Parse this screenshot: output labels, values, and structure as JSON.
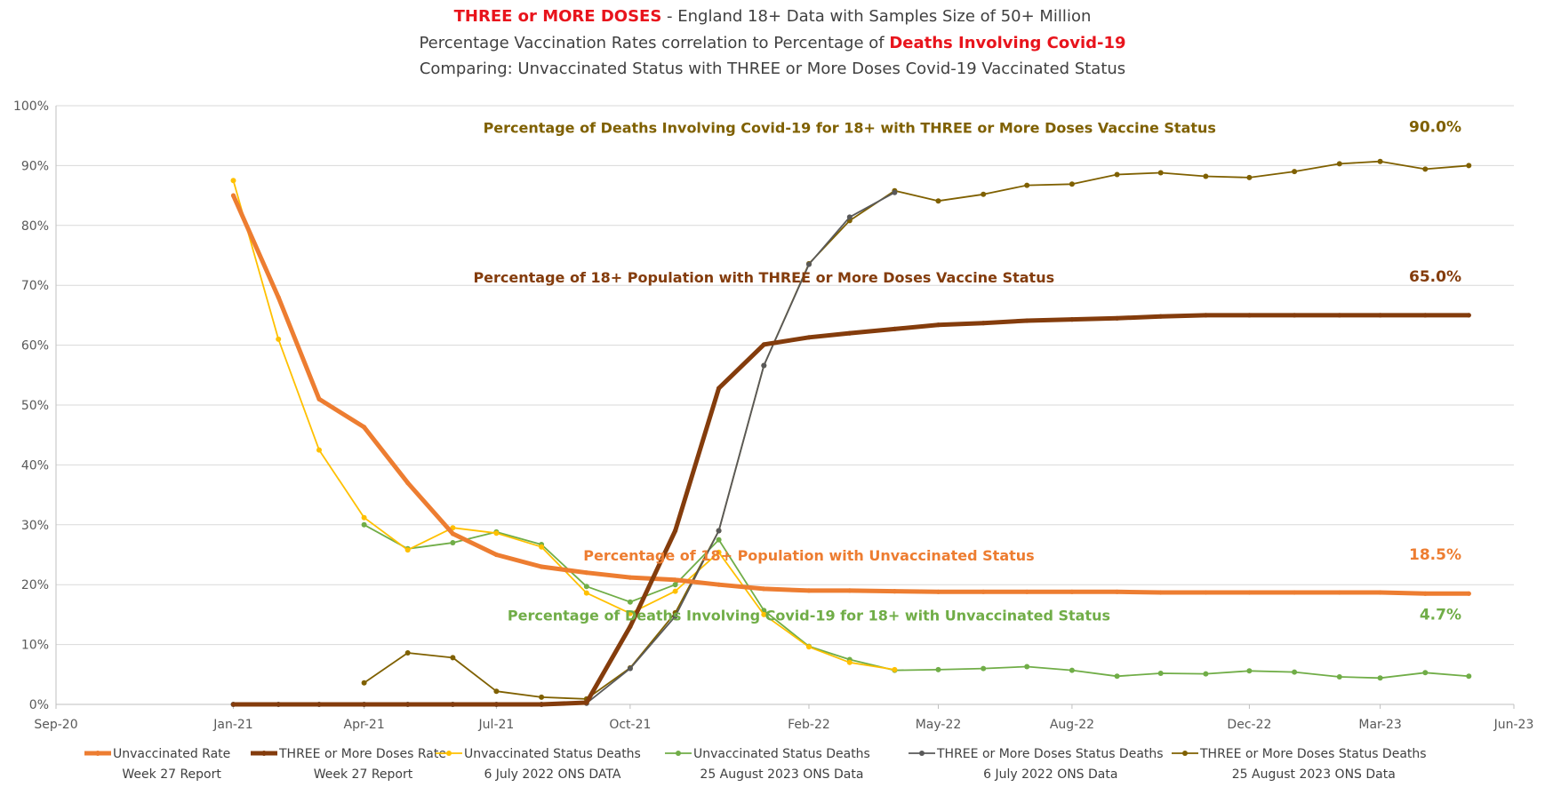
{
  "chart_data": {
    "type": "line",
    "title": {
      "line1": {
        "red": "THREE or MORE DOSES",
        "rest": " - England 18+ Data with Samples Size of 50+ Million"
      },
      "line2": {
        "pre": "Percentage Vaccination Rates correlation to Percentage of ",
        "red": "Deaths Involving Covid-19"
      },
      "line3": "Comparing: Unvaccinated Status with THREE or More Doses Covid-19 Vaccinated Status"
    },
    "y_axis": {
      "min": 0,
      "max": 100,
      "step": 10,
      "format": "percent",
      "ticks": [
        "0%",
        "10%",
        "20%",
        "30%",
        "40%",
        "50%",
        "60%",
        "70%",
        "80%",
        "90%",
        "100%"
      ]
    },
    "x_axis": {
      "min": "2020-09-01",
      "max": "2023-06-01",
      "ticks": [
        {
          "date": "2020-09-01",
          "label": "Sep-20"
        },
        {
          "date": "2021-01-01",
          "label": "Jan-21"
        },
        {
          "date": "2021-04-01",
          "label": "Apr-21"
        },
        {
          "date": "2021-07-01",
          "label": "Jul-21"
        },
        {
          "date": "2021-10-01",
          "label": "Oct-21"
        },
        {
          "date": "2022-02-01",
          "label": "Feb-22"
        },
        {
          "date": "2022-05-01",
          "label": "May-22"
        },
        {
          "date": "2022-08-01",
          "label": "Aug-22"
        },
        {
          "date": "2022-12-01",
          "label": "Dec-22"
        },
        {
          "date": "2023-03-01",
          "label": "Mar-23"
        },
        {
          "date": "2023-06-01",
          "label": "Jun-23"
        }
      ]
    },
    "grid": "horizontal",
    "legend_position": "bottom",
    "series": [
      {
        "name": "Unvaccinated Rate",
        "name2": "Week 27 Report",
        "color": "#ed7d31",
        "style": "thick",
        "points": [
          [
            "2021-01-01",
            85.0
          ],
          [
            "2021-02-01",
            68.0
          ],
          [
            "2021-03-01",
            51.0
          ],
          [
            "2021-04-01",
            46.3
          ],
          [
            "2021-05-01",
            37.0
          ],
          [
            "2021-06-01",
            28.5
          ],
          [
            "2021-07-01",
            25.0
          ],
          [
            "2021-08-01",
            23.0
          ],
          [
            "2021-09-01",
            22.0
          ],
          [
            "2021-10-01",
            21.2
          ],
          [
            "2021-11-01",
            20.8
          ],
          [
            "2021-12-01",
            20.0
          ],
          [
            "2022-01-01",
            19.3
          ],
          [
            "2022-02-01",
            19.0
          ],
          [
            "2022-03-01",
            19.0
          ],
          [
            "2022-04-01",
            18.9
          ],
          [
            "2022-05-01",
            18.8
          ],
          [
            "2022-06-01",
            18.8
          ],
          [
            "2022-07-01",
            18.8
          ],
          [
            "2022-08-01",
            18.8
          ],
          [
            "2022-09-01",
            18.8
          ],
          [
            "2022-10-01",
            18.7
          ],
          [
            "2022-11-01",
            18.7
          ],
          [
            "2022-12-01",
            18.7
          ],
          [
            "2023-01-01",
            18.7
          ],
          [
            "2023-02-01",
            18.7
          ],
          [
            "2023-03-01",
            18.7
          ],
          [
            "2023-04-01",
            18.5
          ],
          [
            "2023-05-01",
            18.5
          ]
        ]
      },
      {
        "name": "THREE or More Doses Rate",
        "name2": "Week 27 Report",
        "color": "#843c0c",
        "style": "thick",
        "points": [
          [
            "2021-01-01",
            0
          ],
          [
            "2021-02-01",
            0
          ],
          [
            "2021-03-01",
            0
          ],
          [
            "2021-04-01",
            0
          ],
          [
            "2021-05-01",
            0
          ],
          [
            "2021-06-01",
            0
          ],
          [
            "2021-07-01",
            0
          ],
          [
            "2021-08-01",
            0
          ],
          [
            "2021-09-01",
            0.3
          ],
          [
            "2021-10-01",
            13.0
          ],
          [
            "2021-11-01",
            29.0
          ],
          [
            "2021-12-01",
            52.8
          ],
          [
            "2022-01-01",
            60.1
          ],
          [
            "2022-02-01",
            61.3
          ],
          [
            "2022-03-01",
            62.0
          ],
          [
            "2022-04-01",
            62.7
          ],
          [
            "2022-05-01",
            63.4
          ],
          [
            "2022-06-01",
            63.7
          ],
          [
            "2022-07-01",
            64.1
          ],
          [
            "2022-08-01",
            64.3
          ],
          [
            "2022-09-01",
            64.5
          ],
          [
            "2022-10-01",
            64.8
          ],
          [
            "2022-11-01",
            65.0
          ],
          [
            "2022-12-01",
            65.0
          ],
          [
            "2023-01-01",
            65.0
          ],
          [
            "2023-02-01",
            65.0
          ],
          [
            "2023-03-01",
            65.0
          ],
          [
            "2023-04-01",
            65.0
          ],
          [
            "2023-05-01",
            65.0
          ]
        ]
      },
      {
        "name": "Unvaccinated Status Deaths",
        "name2": "6 July 2022 ONS DATA",
        "color": "#ffc000",
        "style": "thin",
        "points": [
          [
            "2021-01-01",
            87.5
          ],
          [
            "2021-02-01",
            61.0
          ],
          [
            "2021-03-01",
            42.5
          ],
          [
            "2021-04-01",
            31.2
          ],
          [
            "2021-05-01",
            25.8
          ],
          [
            "2021-06-01",
            29.5
          ],
          [
            "2021-07-01",
            28.6
          ],
          [
            "2021-08-01",
            26.3
          ],
          [
            "2021-09-01",
            18.6
          ],
          [
            "2021-10-01",
            15.2
          ],
          [
            "2021-11-01",
            18.9
          ],
          [
            "2021-12-01",
            25.4
          ],
          [
            "2022-01-01",
            15.0
          ],
          [
            "2022-02-01",
            9.6
          ],
          [
            "2022-03-01",
            7.0
          ],
          [
            "2022-04-01",
            5.8
          ]
        ]
      },
      {
        "name": "Unvaccinated Status Deaths",
        "name2": "25 August 2023 ONS Data",
        "color": "#70ad47",
        "style": "thin",
        "points": [
          [
            "2021-04-01",
            30.0
          ],
          [
            "2021-05-01",
            26.0
          ],
          [
            "2021-06-01",
            27.0
          ],
          [
            "2021-07-01",
            28.8
          ],
          [
            "2021-08-01",
            26.7
          ],
          [
            "2021-09-01",
            19.7
          ],
          [
            "2021-10-01",
            17.1
          ],
          [
            "2021-11-01",
            20.0
          ],
          [
            "2021-12-01",
            27.5
          ],
          [
            "2022-01-01",
            15.7
          ],
          [
            "2022-02-01",
            9.7
          ],
          [
            "2022-03-01",
            7.5
          ],
          [
            "2022-04-01",
            5.7
          ],
          [
            "2022-05-01",
            5.8
          ],
          [
            "2022-06-01",
            6.0
          ],
          [
            "2022-07-01",
            6.3
          ],
          [
            "2022-08-01",
            5.7
          ],
          [
            "2022-09-01",
            4.7
          ],
          [
            "2022-10-01",
            5.2
          ],
          [
            "2022-11-01",
            5.1
          ],
          [
            "2022-12-01",
            5.6
          ],
          [
            "2023-01-01",
            5.4
          ],
          [
            "2023-02-01",
            4.6
          ],
          [
            "2023-03-01",
            4.4
          ],
          [
            "2023-04-01",
            5.3
          ],
          [
            "2023-05-01",
            4.7
          ]
        ]
      },
      {
        "name": "THREE or More Doses Status Deaths",
        "name2": "6 July 2022 ONS Data",
        "color": "#595959",
        "style": "thin",
        "points": [
          [
            "2021-01-01",
            0
          ],
          [
            "2021-02-01",
            0
          ],
          [
            "2021-03-01",
            0
          ],
          [
            "2021-04-01",
            0
          ],
          [
            "2021-05-01",
            0
          ],
          [
            "2021-06-01",
            0
          ],
          [
            "2021-07-01",
            0
          ],
          [
            "2021-08-01",
            0
          ],
          [
            "2021-09-01",
            0.2
          ],
          [
            "2021-10-01",
            6.0
          ],
          [
            "2021-11-01",
            14.7
          ],
          [
            "2021-12-01",
            29.0
          ],
          [
            "2022-01-01",
            56.6
          ],
          [
            "2022-02-01",
            73.5
          ],
          [
            "2022-03-01",
            81.4
          ],
          [
            "2022-04-01",
            85.5
          ]
        ]
      },
      {
        "name": "THREE or More Doses Status Deaths",
        "name2": "25 August 2023 ONS Data",
        "color": "#7f6000",
        "style": "thin",
        "points": [
          [
            "2021-04-01",
            3.6
          ],
          [
            "2021-05-01",
            8.6
          ],
          [
            "2021-06-01",
            7.8
          ],
          [
            "2021-07-01",
            2.2
          ],
          [
            "2021-08-01",
            1.2
          ],
          [
            "2021-09-01",
            0.9
          ],
          [
            "2021-10-01",
            6.1
          ],
          [
            "2021-11-01",
            15.3
          ],
          [
            "2021-12-01",
            29.0
          ],
          [
            "2022-01-01",
            56.6
          ],
          [
            "2022-02-01",
            73.6
          ],
          [
            "2022-03-01",
            80.8
          ],
          [
            "2022-04-01",
            85.8
          ],
          [
            "2022-05-01",
            84.1
          ],
          [
            "2022-06-01",
            85.2
          ],
          [
            "2022-07-01",
            86.7
          ],
          [
            "2022-08-01",
            86.9
          ],
          [
            "2022-09-01",
            88.5
          ],
          [
            "2022-10-01",
            88.8
          ],
          [
            "2022-11-01",
            88.2
          ],
          [
            "2022-12-01",
            88.0
          ],
          [
            "2023-01-01",
            89.0
          ],
          [
            "2023-02-01",
            90.3
          ],
          [
            "2023-03-01",
            90.7
          ],
          [
            "2023-04-01",
            89.4
          ],
          [
            "2023-05-01",
            90.0
          ]
        ]
      }
    ],
    "annotations": [
      {
        "text": "Percentage of Deaths Involving Covid-19 for 18+ with THREE or More Doses Vaccine Status",
        "end_label": "90.0%",
        "date": "2022-03-01",
        "y": 95.5,
        "color": "#7f6000"
      },
      {
        "text": "Percentage of 18+ Population  with THREE or More Doses Vaccine Status",
        "end_label": "65.0%",
        "date": "2022-01-01",
        "y": 70.5,
        "color": "#843c0c"
      },
      {
        "text": "Percentage of 18+  Population  with Unvaccinated Status",
        "end_label": "18.5%",
        "date": "2022-02-01",
        "y": 24.0,
        "color": "#ed7d31"
      },
      {
        "text": "Percentage of Deaths Involving Covid-19 for 18+ with Unvaccinated Status",
        "end_label": "4.7%",
        "date": "2022-02-01",
        "y": 14.0,
        "color": "#70ad47"
      }
    ]
  }
}
